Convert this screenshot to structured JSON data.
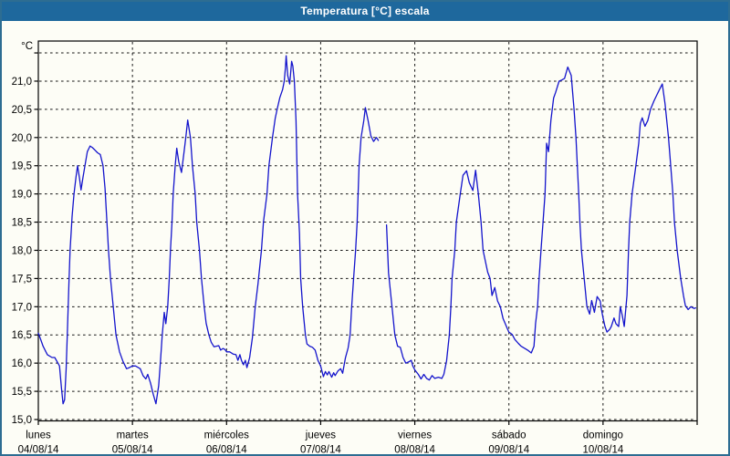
{
  "window": {
    "title": "Temperatura [°C] escala"
  },
  "colors": {
    "title_bar": "#1e689d",
    "title_text": "#ffffff",
    "window_border": "#2d6d92",
    "background": "#fdfdf6",
    "line": "#1414cc",
    "grid": "#161616",
    "plot_border": "#000000",
    "axis_text": "#000000"
  },
  "chart_data": {
    "type": "line",
    "title": "Temperatura [°C] escala",
    "y_unit_label": "°C",
    "ylabel": "",
    "xlabel": "",
    "ylim": [
      14.97,
      21.72
    ],
    "xlim_hours": [
      0,
      168
    ],
    "y_tick_step": 0.5,
    "grid": "dashed",
    "legend_position": "none",
    "y_ticks": [
      {
        "value": 21.5,
        "label": ""
      },
      {
        "value": 21.0,
        "label": "21,0"
      },
      {
        "value": 20.5,
        "label": "20,5"
      },
      {
        "value": 20.0,
        "label": "20,0"
      },
      {
        "value": 19.5,
        "label": "19,5"
      },
      {
        "value": 19.0,
        "label": "19,0"
      },
      {
        "value": 18.5,
        "label": "18,5"
      },
      {
        "value": 18.0,
        "label": "18,0"
      },
      {
        "value": 17.5,
        "label": "17,5"
      },
      {
        "value": 17.0,
        "label": "17,0"
      },
      {
        "value": 16.5,
        "label": "16,5"
      },
      {
        "value": 16.0,
        "label": "16,0"
      },
      {
        "value": 15.5,
        "label": "15,5"
      },
      {
        "value": 15.0,
        "label": "15,0"
      }
    ],
    "x_axis": {
      "unit": "hours",
      "day_span_hours": 24,
      "days": [
        {
          "name": "lunes",
          "date": "04/08/14"
        },
        {
          "name": "martes",
          "date": "05/08/14"
        },
        {
          "name": "miércoles",
          "date": "06/08/14"
        },
        {
          "name": "jueves",
          "date": "07/08/14"
        },
        {
          "name": "viernes",
          "date": "08/08/14"
        },
        {
          "name": "sábado",
          "date": "09/08/14"
        },
        {
          "name": "domingo",
          "date": "10/08/14"
        }
      ]
    },
    "series": [
      {
        "name": "Temperatura",
        "color": "#1414cc",
        "points": [
          [
            0,
            16.53
          ],
          [
            0.7,
            16.4
          ],
          [
            1.2,
            16.3
          ],
          [
            2.3,
            16.15
          ],
          [
            3.5,
            16.1
          ],
          [
            4.2,
            16.1
          ],
          [
            5,
            16.0
          ],
          [
            5.4,
            15.95
          ],
          [
            5.9,
            15.55
          ],
          [
            6.3,
            15.28
          ],
          [
            6.7,
            15.35
          ],
          [
            7.1,
            15.9
          ],
          [
            7.4,
            16.53
          ],
          [
            7.8,
            17.4
          ],
          [
            8.1,
            18.0
          ],
          [
            8.6,
            18.6
          ],
          [
            9.1,
            19.0
          ],
          [
            9.6,
            19.3
          ],
          [
            10,
            19.5
          ],
          [
            10.5,
            19.28
          ],
          [
            10.9,
            19.07
          ],
          [
            11.4,
            19.3
          ],
          [
            11.9,
            19.5
          ],
          [
            12.5,
            19.75
          ],
          [
            13.2,
            19.85
          ],
          [
            13.8,
            19.82
          ],
          [
            14.4,
            19.78
          ],
          [
            15.1,
            19.73
          ],
          [
            15.8,
            19.7
          ],
          [
            16.5,
            19.5
          ],
          [
            17,
            19.1
          ],
          [
            17.5,
            18.5
          ],
          [
            17.9,
            18.0
          ],
          [
            18.4,
            17.5
          ],
          [
            19.1,
            17.0
          ],
          [
            19.8,
            16.5
          ],
          [
            20.7,
            16.2
          ],
          [
            21.6,
            16.03
          ],
          [
            22.5,
            15.9
          ],
          [
            23.2,
            15.92
          ],
          [
            24,
            15.95
          ],
          [
            24.8,
            15.95
          ],
          [
            26,
            15.9
          ],
          [
            26.7,
            15.78
          ],
          [
            27.4,
            15.72
          ],
          [
            27.9,
            15.8
          ],
          [
            28.6,
            15.65
          ],
          [
            29.3,
            15.45
          ],
          [
            30,
            15.28
          ],
          [
            30.7,
            15.6
          ],
          [
            31.1,
            16.0
          ],
          [
            31.6,
            16.5
          ],
          [
            32.1,
            16.9
          ],
          [
            32.5,
            16.7
          ],
          [
            33,
            17.0
          ],
          [
            33.4,
            17.5
          ],
          [
            33.7,
            18.0
          ],
          [
            34.1,
            18.5
          ],
          [
            34.4,
            19.0
          ],
          [
            34.9,
            19.5
          ],
          [
            35.3,
            19.81
          ],
          [
            35.8,
            19.57
          ],
          [
            36.5,
            19.38
          ],
          [
            37.2,
            19.77
          ],
          [
            37.6,
            20.0
          ],
          [
            38.1,
            20.31
          ],
          [
            38.8,
            20.0
          ],
          [
            39.3,
            19.5
          ],
          [
            40,
            19.0
          ],
          [
            40.4,
            18.5
          ],
          [
            41.1,
            18.0
          ],
          [
            41.6,
            17.5
          ],
          [
            42.3,
            17.0
          ],
          [
            42.8,
            16.71
          ],
          [
            43.5,
            16.5
          ],
          [
            44.1,
            16.37
          ],
          [
            44.8,
            16.29
          ],
          [
            46,
            16.31
          ],
          [
            46.5,
            16.23
          ],
          [
            47.1,
            16.26
          ],
          [
            47.6,
            16.24
          ],
          [
            48,
            16.2
          ],
          [
            48.8,
            16.2
          ],
          [
            49.7,
            16.16
          ],
          [
            50.4,
            16.15
          ],
          [
            50.9,
            16.05
          ],
          [
            51.4,
            16.15
          ],
          [
            51.8,
            16.05
          ],
          [
            52.3,
            15.97
          ],
          [
            52.8,
            16.05
          ],
          [
            53.2,
            15.92
          ],
          [
            53.9,
            16.1
          ],
          [
            54.6,
            16.45
          ],
          [
            55.3,
            17.0
          ],
          [
            56,
            17.4
          ],
          [
            56.9,
            18.0
          ],
          [
            57.4,
            18.5
          ],
          [
            58.3,
            19.0
          ],
          [
            58.8,
            19.5
          ],
          [
            59.7,
            20.0
          ],
          [
            60.4,
            20.34
          ],
          [
            60.9,
            20.5
          ],
          [
            61.6,
            20.71
          ],
          [
            62.3,
            20.85
          ],
          [
            62.7,
            21.0
          ],
          [
            63,
            21.24
          ],
          [
            63.2,
            21.45
          ],
          [
            63.6,
            21.1
          ],
          [
            64.1,
            20.95
          ],
          [
            64.6,
            21.35
          ],
          [
            64.9,
            21.27
          ],
          [
            65.3,
            21.0
          ],
          [
            65.7,
            20.3
          ],
          [
            66.1,
            19.0
          ],
          [
            66.6,
            18.3
          ],
          [
            66.9,
            17.5
          ],
          [
            67.4,
            17.0
          ],
          [
            68.1,
            16.5
          ],
          [
            68.5,
            16.34
          ],
          [
            69.2,
            16.3
          ],
          [
            69.9,
            16.28
          ],
          [
            70.6,
            16.23
          ],
          [
            71.3,
            16.05
          ],
          [
            72,
            15.95
          ],
          [
            72.7,
            15.76
          ],
          [
            73.2,
            15.85
          ],
          [
            73.7,
            15.79
          ],
          [
            74.1,
            15.85
          ],
          [
            74.8,
            15.75
          ],
          [
            75.3,
            15.83
          ],
          [
            75.7,
            15.78
          ],
          [
            76.4,
            15.86
          ],
          [
            77.1,
            15.9
          ],
          [
            77.6,
            15.82
          ],
          [
            78.3,
            16.09
          ],
          [
            79,
            16.27
          ],
          [
            79.5,
            16.5
          ],
          [
            79.9,
            17.0
          ],
          [
            80.4,
            17.5
          ],
          [
            80.9,
            18.0
          ],
          [
            81.3,
            18.5
          ],
          [
            81.8,
            19.5
          ],
          [
            82.3,
            20.0
          ],
          [
            83,
            20.3
          ],
          [
            83.4,
            20.53
          ],
          [
            84.1,
            20.3
          ],
          [
            84.8,
            20.03
          ],
          [
            85.5,
            19.93
          ],
          [
            86.2,
            20.0
          ],
          [
            86.7,
            19.95
          ],
          null,
          [
            88.8,
            18.45
          ],
          [
            89.3,
            17.6
          ],
          [
            90.2,
            17.0
          ],
          [
            90.9,
            16.5
          ],
          [
            91.6,
            16.3
          ],
          [
            92.3,
            16.28
          ],
          [
            93,
            16.1
          ],
          [
            93.7,
            16.0
          ],
          [
            94.4,
            16.02
          ],
          [
            95.1,
            16.05
          ],
          [
            95.5,
            15.95
          ],
          [
            96,
            15.88
          ],
          [
            96.9,
            15.8
          ],
          [
            97.6,
            15.72
          ],
          [
            98.3,
            15.8
          ],
          [
            99,
            15.73
          ],
          [
            99.7,
            15.7
          ],
          [
            100.4,
            15.78
          ],
          [
            101.1,
            15.73
          ],
          [
            102,
            15.75
          ],
          [
            102.9,
            15.73
          ],
          [
            103.4,
            15.8
          ],
          [
            104.1,
            16.04
          ],
          [
            104.8,
            16.5
          ],
          [
            105.2,
            17.0
          ],
          [
            105.5,
            17.5
          ],
          [
            106.2,
            18.0
          ],
          [
            106.6,
            18.5
          ],
          [
            107.6,
            19.0
          ],
          [
            108.3,
            19.33
          ],
          [
            109.2,
            19.41
          ],
          [
            109.9,
            19.2
          ],
          [
            110.8,
            19.06
          ],
          [
            111.5,
            19.42
          ],
          [
            112.2,
            19.0
          ],
          [
            112.9,
            18.5
          ],
          [
            113.4,
            18.0
          ],
          [
            114.6,
            17.61
          ],
          [
            115.2,
            17.5
          ],
          [
            115.7,
            17.2
          ],
          [
            116.4,
            17.34
          ],
          [
            117.1,
            17.1
          ],
          [
            117.8,
            17.0
          ],
          [
            118.5,
            16.79
          ],
          [
            119.6,
            16.61
          ],
          [
            120,
            16.55
          ],
          [
            120.8,
            16.51
          ],
          [
            121.5,
            16.42
          ],
          [
            122.4,
            16.35
          ],
          [
            123.1,
            16.3
          ],
          [
            124.3,
            16.25
          ],
          [
            125,
            16.22
          ],
          [
            125.7,
            16.18
          ],
          [
            126.4,
            16.3
          ],
          [
            126.8,
            16.7
          ],
          [
            127.3,
            17.0
          ],
          [
            127.7,
            17.5
          ],
          [
            128.2,
            18.03
          ],
          [
            128.7,
            18.5
          ],
          [
            129.2,
            19.0
          ],
          [
            129.6,
            19.9
          ],
          [
            130.1,
            19.75
          ],
          [
            130.7,
            20.3
          ],
          [
            131.4,
            20.7
          ],
          [
            131.9,
            20.8
          ],
          [
            132.8,
            21.0
          ],
          [
            133.5,
            21.02
          ],
          [
            134.2,
            21.05
          ],
          [
            135,
            21.25
          ],
          [
            135.9,
            21.1
          ],
          [
            136.6,
            20.5
          ],
          [
            137.1,
            20.0
          ],
          [
            137.8,
            19.0
          ],
          [
            138.1,
            18.5
          ],
          [
            138.5,
            18.0
          ],
          [
            139.2,
            17.5
          ],
          [
            139.9,
            17.0
          ],
          [
            140.6,
            16.87
          ],
          [
            141.1,
            17.11
          ],
          [
            141.8,
            16.9
          ],
          [
            142.5,
            17.18
          ],
          [
            143.3,
            17.1
          ],
          [
            143.6,
            16.95
          ],
          [
            144,
            16.8
          ],
          [
            144.5,
            16.65
          ],
          [
            145,
            16.55
          ],
          [
            145.7,
            16.6
          ],
          [
            146.1,
            16.65
          ],
          [
            146.8,
            16.8
          ],
          [
            147.3,
            16.7
          ],
          [
            148,
            16.65
          ],
          [
            148.4,
            17.0
          ],
          [
            148.9,
            16.85
          ],
          [
            149.4,
            16.65
          ],
          [
            150.1,
            17.2
          ],
          [
            150.5,
            18.0
          ],
          [
            150.8,
            18.5
          ],
          [
            151.4,
            19.0
          ],
          [
            152.4,
            19.52
          ],
          [
            153.1,
            19.9
          ],
          [
            153.5,
            20.25
          ],
          [
            154,
            20.35
          ],
          [
            154.7,
            20.2
          ],
          [
            155.4,
            20.3
          ],
          [
            156.1,
            20.5
          ],
          [
            157,
            20.65
          ],
          [
            157.7,
            20.75
          ],
          [
            158.4,
            20.85
          ],
          [
            159.1,
            20.95
          ],
          [
            159.8,
            20.6
          ],
          [
            160.7,
            20.0
          ],
          [
            161.1,
            19.65
          ],
          [
            161.8,
            19.0
          ],
          [
            162.2,
            18.5
          ],
          [
            162.9,
            18.0
          ],
          [
            163.8,
            17.5
          ],
          [
            164.5,
            17.2
          ],
          [
            165,
            17.02
          ],
          [
            165.7,
            16.95
          ],
          [
            166.4,
            17.0
          ],
          [
            167.2,
            16.97
          ],
          [
            167.6,
            16.98
          ]
        ]
      }
    ]
  }
}
